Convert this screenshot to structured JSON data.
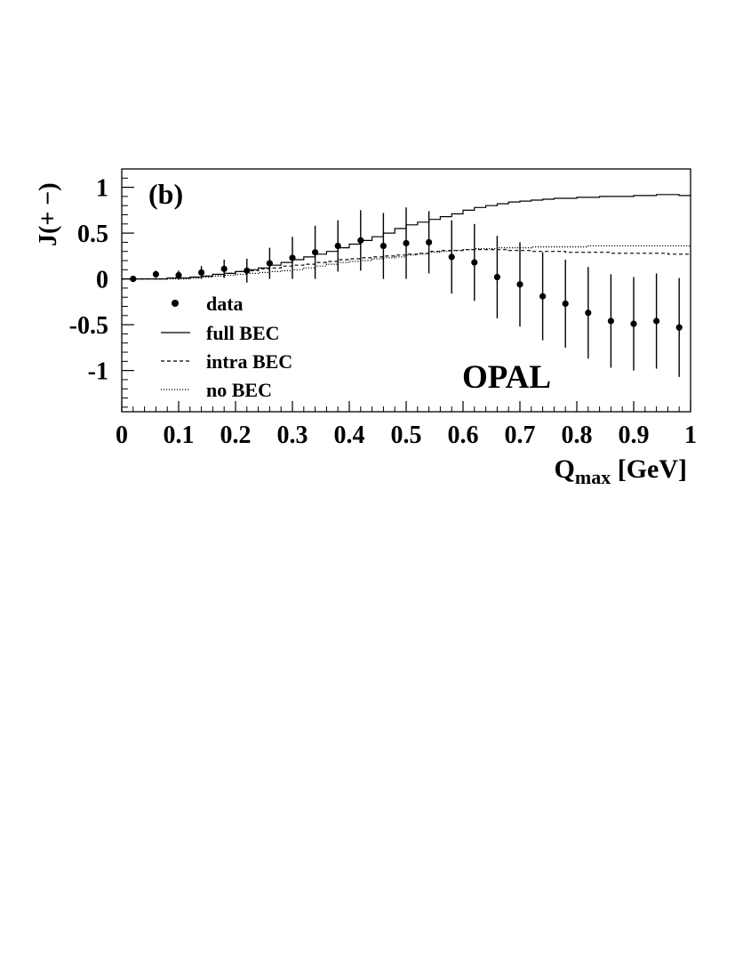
{
  "chart_data": {
    "type": "scatter",
    "panel_label": "(b)",
    "xlabel": "Q",
    "xlabel_sub": "max",
    "xlabel_unit": " [GeV]",
    "ylabel": "J(+ −)",
    "annotation": "OPAL",
    "xlim": [
      0,
      1
    ],
    "ylim": [
      -1.45,
      1.2
    ],
    "x_ticks": [
      0,
      0.1,
      0.2,
      0.3,
      0.4,
      0.5,
      0.6,
      0.7,
      0.8,
      0.9,
      1
    ],
    "x_tick_labels": [
      "0",
      "0.1",
      "0.2",
      "0.3",
      "0.4",
      "0.5",
      "0.6",
      "0.7",
      "0.8",
      "0.9",
      "1"
    ],
    "y_ticks": [
      1,
      0.5,
      0,
      -0.5,
      -1
    ],
    "y_tick_labels": [
      "1",
      "0.5",
      "0",
      "-0.5",
      "-1"
    ],
    "grid": false,
    "legend_position": "bottom-left",
    "legend": [
      {
        "label": "data",
        "style": "marker"
      },
      {
        "label": "full BEC",
        "style": "solid"
      },
      {
        "label": "intra BEC",
        "style": "dashed"
      },
      {
        "label": "no BEC",
        "style": "dotted"
      }
    ],
    "data_points": {
      "x": [
        0.02,
        0.06,
        0.1,
        0.14,
        0.18,
        0.22,
        0.26,
        0.3,
        0.34,
        0.38,
        0.42,
        0.46,
        0.5,
        0.54,
        0.58,
        0.62,
        0.66,
        0.7,
        0.74,
        0.78,
        0.82,
        0.86,
        0.9,
        0.94,
        0.98
      ],
      "y": [
        0.0,
        0.05,
        0.04,
        0.07,
        0.11,
        0.09,
        0.17,
        0.23,
        0.29,
        0.36,
        0.42,
        0.36,
        0.39,
        0.4,
        0.24,
        0.18,
        0.02,
        -0.06,
        -0.19,
        -0.27,
        -0.37,
        -0.46,
        -0.49,
        -0.46,
        -0.53
      ],
      "err": [
        0.02,
        0.04,
        0.05,
        0.07,
        0.1,
        0.13,
        0.17,
        0.23,
        0.29,
        0.28,
        0.33,
        0.36,
        0.39,
        0.34,
        0.4,
        0.42,
        0.45,
        0.46,
        0.48,
        0.48,
        0.5,
        0.51,
        0.51,
        0.52,
        0.54
      ]
    },
    "series": [
      {
        "style": "solid",
        "step_width": 0.02,
        "x_start": 0,
        "values": [
          0.0,
          0.0,
          0.0,
          0.0,
          0.01,
          0.01,
          0.02,
          0.03,
          0.05,
          0.06,
          0.08,
          0.1,
          0.12,
          0.15,
          0.18,
          0.21,
          0.24,
          0.27,
          0.3,
          0.34,
          0.38,
          0.42,
          0.46,
          0.5,
          0.55,
          0.59,
          0.62,
          0.65,
          0.68,
          0.71,
          0.75,
          0.78,
          0.8,
          0.82,
          0.84,
          0.85,
          0.86,
          0.87,
          0.88,
          0.88,
          0.89,
          0.89,
          0.9,
          0.9,
          0.9,
          0.91,
          0.91,
          0.92,
          0.92,
          0.91
        ]
      },
      {
        "style": "dashed",
        "step_width": 0.02,
        "x_start": 0,
        "values": [
          0.0,
          0.0,
          0.0,
          0.0,
          0.01,
          0.01,
          0.02,
          0.03,
          0.05,
          0.06,
          0.08,
          0.09,
          0.11,
          0.12,
          0.14,
          0.15,
          0.16,
          0.18,
          0.19,
          0.21,
          0.22,
          0.23,
          0.24,
          0.25,
          0.26,
          0.27,
          0.28,
          0.3,
          0.31,
          0.31,
          0.32,
          0.32,
          0.32,
          0.32,
          0.31,
          0.31,
          0.3,
          0.3,
          0.3,
          0.29,
          0.29,
          0.29,
          0.29,
          0.28,
          0.28,
          0.28,
          0.28,
          0.28,
          0.27,
          0.27
        ]
      },
      {
        "style": "dotted",
        "step_width": 0.02,
        "x_start": 0,
        "values": [
          0.0,
          0.0,
          0.0,
          0.0,
          0.0,
          0.0,
          0.01,
          0.02,
          0.03,
          0.04,
          0.05,
          0.06,
          0.07,
          0.08,
          0.09,
          0.1,
          0.12,
          0.14,
          0.16,
          0.18,
          0.19,
          0.2,
          0.22,
          0.23,
          0.24,
          0.26,
          0.27,
          0.29,
          0.3,
          0.31,
          0.32,
          0.33,
          0.33,
          0.34,
          0.34,
          0.34,
          0.35,
          0.35,
          0.35,
          0.35,
          0.35,
          0.36,
          0.36,
          0.36,
          0.36,
          0.36,
          0.36,
          0.36,
          0.36,
          0.36
        ]
      }
    ]
  }
}
